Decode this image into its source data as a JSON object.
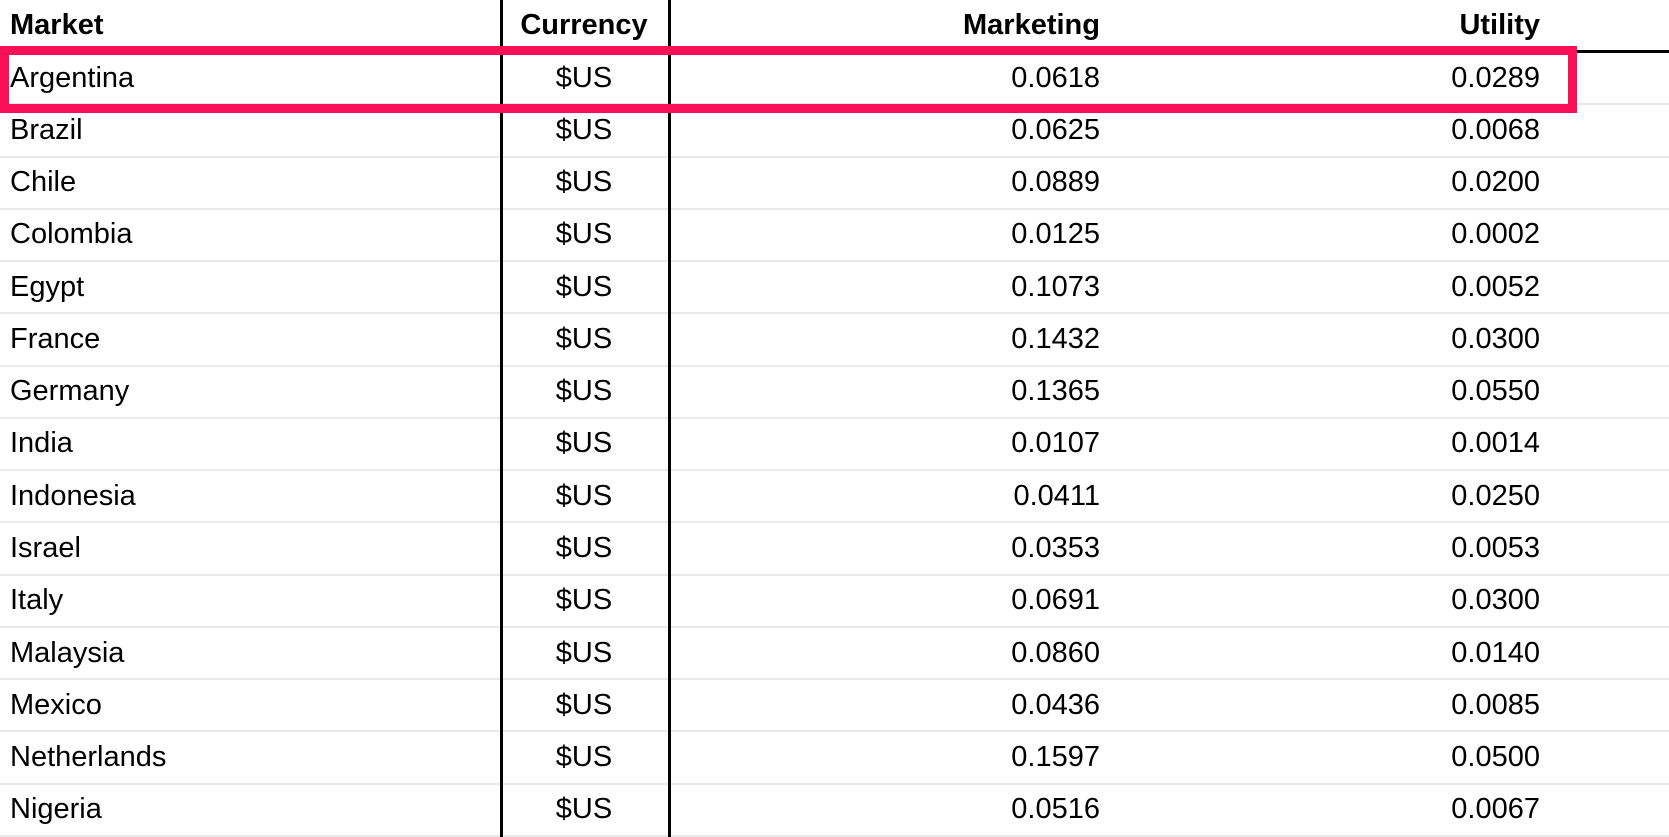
{
  "table": {
    "columns": [
      {
        "key": "market",
        "label": "Market"
      },
      {
        "key": "currency",
        "label": "Currency"
      },
      {
        "key": "marketing",
        "label": "Marketing"
      },
      {
        "key": "utility",
        "label": "Utility"
      }
    ],
    "rows": [
      {
        "market": "Argentina",
        "currency": "$US",
        "marketing": "0.0618",
        "utility": "0.0289",
        "highlighted": true
      },
      {
        "market": "Brazil",
        "currency": "$US",
        "marketing": "0.0625",
        "utility": "0.0068",
        "highlighted": false
      },
      {
        "market": "Chile",
        "currency": "$US",
        "marketing": "0.0889",
        "utility": "0.0200",
        "highlighted": false
      },
      {
        "market": "Colombia",
        "currency": "$US",
        "marketing": "0.0125",
        "utility": "0.0002",
        "highlighted": false
      },
      {
        "market": "Egypt",
        "currency": "$US",
        "marketing": "0.1073",
        "utility": "0.0052",
        "highlighted": false
      },
      {
        "market": "France",
        "currency": "$US",
        "marketing": "0.1432",
        "utility": "0.0300",
        "highlighted": false
      },
      {
        "market": "Germany",
        "currency": "$US",
        "marketing": "0.1365",
        "utility": "0.0550",
        "highlighted": false
      },
      {
        "market": "India",
        "currency": "$US",
        "marketing": "0.0107",
        "utility": "0.0014",
        "highlighted": false
      },
      {
        "market": "Indonesia",
        "currency": "$US",
        "marketing": "0.0411",
        "utility": "0.0250",
        "highlighted": false
      },
      {
        "market": "Israel",
        "currency": "$US",
        "marketing": "0.0353",
        "utility": "0.0053",
        "highlighted": false
      },
      {
        "market": "Italy",
        "currency": "$US",
        "marketing": "0.0691",
        "utility": "0.0300",
        "highlighted": false
      },
      {
        "market": "Malaysia",
        "currency": "$US",
        "marketing": "0.0860",
        "utility": "0.0140",
        "highlighted": false
      },
      {
        "market": "Mexico",
        "currency": "$US",
        "marketing": "0.0436",
        "utility": "0.0085",
        "highlighted": false
      },
      {
        "market": "Netherlands",
        "currency": "$US",
        "marketing": "0.1597",
        "utility": "0.0500",
        "highlighted": false
      },
      {
        "market": "Nigeria",
        "currency": "$US",
        "marketing": "0.0516",
        "utility": "0.0067",
        "highlighted": false
      }
    ]
  },
  "annotation": {
    "highlighted_row": "Argentina",
    "color": "#F80F57"
  },
  "colors": {
    "grid_line": "#000000",
    "row_separator": "#e9e9e9",
    "background": "#ffffff",
    "text": "#000000"
  }
}
